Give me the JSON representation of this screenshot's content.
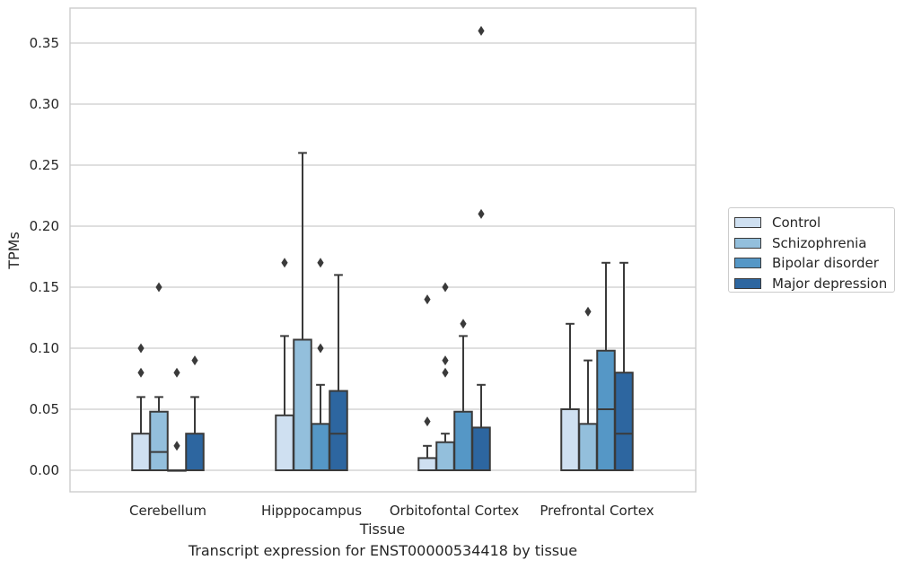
{
  "chart_data": {
    "type": "box",
    "caption": "Transcript expression for ENST00000534418 by tissue",
    "xlabel": "Tissue",
    "ylabel": "TPMs",
    "ylim": [
      -0.018,
      0.378
    ],
    "yticks": [
      0.0,
      0.05,
      0.1,
      0.15,
      0.2,
      0.25,
      0.3,
      0.35
    ],
    "ytick_labels": [
      "0.00",
      "0.05",
      "0.10",
      "0.15",
      "0.20",
      "0.25",
      "0.30",
      "0.35"
    ],
    "grid": "horizontal",
    "legend_placement": "right",
    "categories": [
      "Cerebellum",
      "Hipppocampus",
      "Orbitofontal Cortex",
      "Prefrontal Cortex"
    ],
    "series": [
      {
        "name": "Control",
        "color": "#cfe0f1",
        "boxes": [
          {
            "q1": 0.0,
            "median": 0.0,
            "q3": 0.03,
            "whisker_low": 0.0,
            "whisker_high": 0.06,
            "outliers": [
              0.08,
              0.1
            ]
          },
          {
            "q1": 0.0,
            "median": 0.0,
            "q3": 0.045,
            "whisker_low": 0.0,
            "whisker_high": 0.11,
            "outliers": [
              0.17
            ]
          },
          {
            "q1": 0.0,
            "median": 0.0,
            "q3": 0.01,
            "whisker_low": 0.0,
            "whisker_high": 0.02,
            "outliers": [
              0.04,
              0.14
            ]
          },
          {
            "q1": 0.0,
            "median": 0.0,
            "q3": 0.05,
            "whisker_low": 0.0,
            "whisker_high": 0.12,
            "outliers": []
          }
        ]
      },
      {
        "name": "Schizophrenia",
        "color": "#93bfdc",
        "boxes": [
          {
            "q1": 0.0,
            "median": 0.015,
            "q3": 0.048,
            "whisker_low": 0.0,
            "whisker_high": 0.06,
            "outliers": [
              0.15
            ]
          },
          {
            "q1": 0.0,
            "median": 0.0,
            "q3": 0.107,
            "whisker_low": 0.0,
            "whisker_high": 0.26,
            "outliers": []
          },
          {
            "q1": 0.0,
            "median": 0.0,
            "q3": 0.023,
            "whisker_low": 0.0,
            "whisker_high": 0.03,
            "outliers": [
              0.08,
              0.09,
              0.15
            ]
          },
          {
            "q1": 0.0,
            "median": 0.0,
            "q3": 0.038,
            "whisker_low": 0.0,
            "whisker_high": 0.09,
            "outliers": [
              0.13
            ]
          }
        ]
      },
      {
        "name": "Bipolar disorder",
        "color": "#5597c6",
        "boxes": [
          {
            "q1": 0.0,
            "median": 0.0,
            "q3": 0.0,
            "whisker_low": 0.0,
            "whisker_high": 0.0,
            "outliers": [
              0.02,
              0.08
            ]
          },
          {
            "q1": 0.0,
            "median": 0.0,
            "q3": 0.038,
            "whisker_low": 0.0,
            "whisker_high": 0.07,
            "outliers": [
              0.1,
              0.17
            ]
          },
          {
            "q1": 0.0,
            "median": 0.0,
            "q3": 0.048,
            "whisker_low": 0.0,
            "whisker_high": 0.11,
            "outliers": [
              0.12
            ]
          },
          {
            "q1": 0.0,
            "median": 0.05,
            "q3": 0.098,
            "whisker_low": 0.0,
            "whisker_high": 0.17,
            "outliers": []
          }
        ]
      },
      {
        "name": "Major depression",
        "color": "#2d66a0",
        "boxes": [
          {
            "q1": 0.0,
            "median": 0.0,
            "q3": 0.03,
            "whisker_low": 0.0,
            "whisker_high": 0.06,
            "outliers": [
              0.09
            ]
          },
          {
            "q1": 0.0,
            "median": 0.03,
            "q3": 0.065,
            "whisker_low": 0.0,
            "whisker_high": 0.16,
            "outliers": []
          },
          {
            "q1": 0.0,
            "median": 0.0,
            "q3": 0.035,
            "whisker_low": 0.0,
            "whisker_high": 0.07,
            "outliers": [
              0.21,
              0.36
            ]
          },
          {
            "q1": 0.0,
            "median": 0.03,
            "q3": 0.08,
            "whisker_low": 0.0,
            "whisker_high": 0.17,
            "outliers": []
          }
        ]
      }
    ]
  }
}
